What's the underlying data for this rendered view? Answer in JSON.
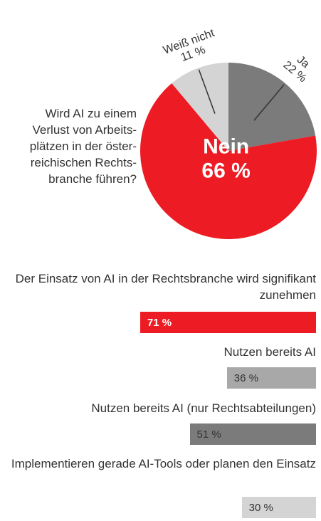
{
  "chart_data": [
    {
      "type": "pie",
      "title": "Wird AI zu einem Verlust von Arbeits-plätzen in der öster-reichischen Rechts-branche führen?",
      "slices": [
        {
          "label": "Ja",
          "value": 22,
          "value_label": "22 %",
          "color": "#7b7b7b"
        },
        {
          "label": "Nein",
          "value": 66,
          "value_label": "66 %",
          "color": "#ed1c24"
        },
        {
          "label": "Weiß nicht",
          "value": 11,
          "value_label": "11 %",
          "color": "#d4d4d4"
        }
      ]
    },
    {
      "type": "bar",
      "orientation": "horizontal",
      "xlim": [
        0,
        100
      ],
      "bars": [
        {
          "label": "Der Einsatz von AI in der Rechtsbranche wird signifikant zunehmen",
          "value": 71,
          "value_label": "71 %",
          "color": "#ed1c24"
        },
        {
          "label": "Nutzen bereits AI",
          "value": 36,
          "value_label": "36 %",
          "color": "#a8a8a8"
        },
        {
          "label": "Nutzen bereits AI (nur Rechtsabteilungen)",
          "value": 51,
          "value_label": "51 %",
          "color": "#7b7b7b"
        },
        {
          "label": "Implementieren gerade AI-Tools oder planen den Einsatz",
          "value": 30,
          "value_label": "30 %",
          "color": "#d4d4d4"
        }
      ]
    }
  ]
}
